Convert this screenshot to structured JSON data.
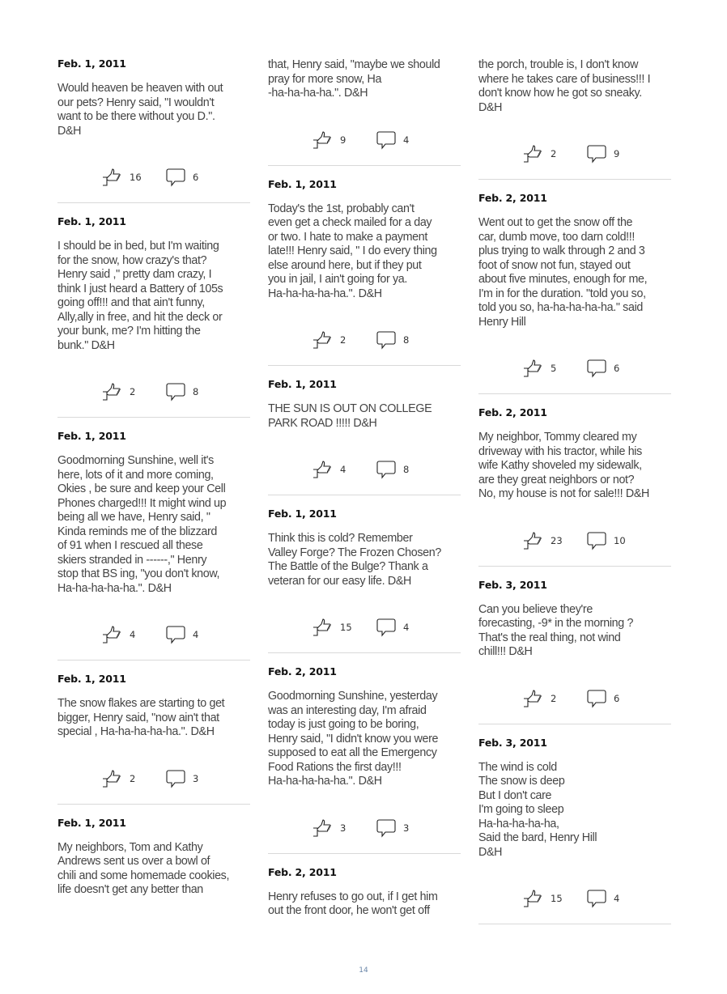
{
  "columns": [
    {
      "posts": [
        {
          "date": "Feb. 1, 2011",
          "text": "Would heaven be heaven with out\nour pets? Henry said, \"I wouldn't\nwant to be there without you D.\".\nD&H",
          "likes": "16",
          "comments": "6"
        },
        {
          "date": "Feb. 1, 2011",
          "text": "I should be in bed, but I'm waiting\nfor the snow, how crazy's that?\nHenry said ,\" pretty dam crazy, I\nthink I just heard a Battery of 105s\ngoing off!!! and that ain't funny,\nAlly,ally in free, and hit the deck or\nyour bunk, me? I'm hitting the\nbunk.\" D&H",
          "likes": "2",
          "comments": "8"
        },
        {
          "date": "Feb. 1, 2011",
          "text": "Goodmorning Sunshine, well it's\nhere, lots of it and more coming,\nOkies , be sure and keep your Cell\nPhones charged!!! It might wind up\nbeing all we have, Henry said, \"\nKinda reminds me of the blizzard\nof 91 when I rescued all these\nskiers stranded in ------,\" Henry\nstop that BS ing, \"you don't know,\nHa-ha-ha-ha-ha.\". D&H",
          "likes": "4",
          "comments": "4"
        },
        {
          "date": "Feb. 1, 2011",
          "text": "The snow flakes are starting to get\nbigger, Henry said, \"now ain't that\nspecial , Ha-ha-ha-ha-ha.\". D&H",
          "likes": "2",
          "comments": "3"
        },
        {
          "date": "Feb. 1, 2011",
          "text": "My neighbors, Tom and Kathy\nAndrews sent us over a bowl of\nchili and some homemade cookies,\nlife doesn't get any better than"
        }
      ]
    },
    {
      "posts": [
        {
          "text": "that, Henry said, \"maybe we should\npray for more snow, Ha\n-ha-ha-ha-ha.\". D&H",
          "likes": "9",
          "comments": "4"
        },
        {
          "date": "Feb. 1, 2011",
          "text": "Today's the 1st, probably can't\neven get a check mailed for a day\nor two. I hate to make a payment\nlate!!! Henry said, \" I do every thing\nelse around here, but if they put\nyou in jail, I ain't going for ya.\nHa-ha-ha-ha-ha.\". D&H",
          "likes": "2",
          "comments": "8"
        },
        {
          "date": "Feb. 1, 2011",
          "text": "THE SUN IS OUT ON COLLEGE\nPARK ROAD !!!!! D&H",
          "likes": "4",
          "comments": "8"
        },
        {
          "date": "Feb. 1, 2011",
          "text": "Think this is cold? Remember\nValley Forge? The Frozen Chosen?\nThe Battle of the Bulge? Thank a\nveteran for our easy life. D&H",
          "likes": "15",
          "comments": "4"
        },
        {
          "date": "Feb. 2, 2011",
          "text": "Goodmorning Sunshine, yesterday\nwas an interesting day, I'm afraid\ntoday is just going to be boring,\nHenry said, \"I didn't know you were\nsupposed to eat all the Emergency\nFood Rations the first day!!!\nHa-ha-ha-ha-ha.\". D&H",
          "likes": "3",
          "comments": "3"
        },
        {
          "date": "Feb. 2, 2011",
          "text": "Henry refuses to go out, if I get him\nout the front door, he won't get off"
        }
      ]
    },
    {
      "posts": [
        {
          "text": "the porch, trouble is, I don't know\nwhere he takes care of business!!! I\ndon't know how he got so sneaky.\nD&H",
          "likes": "2",
          "comments": "9"
        },
        {
          "date": "Feb. 2, 2011",
          "text": "Went out to get the snow off the\ncar, dumb move, too darn cold!!!\nplus trying to walk through 2 and 3\nfoot of snow not fun, stayed out\nabout five minutes, enough for me,\nI'm in for the duration. \"told you so,\ntold you so, ha-ha-ha-ha-ha.\" said\nHenry Hill",
          "likes": "5",
          "comments": "6"
        },
        {
          "date": "Feb. 2, 2011",
          "text": "My neighbor, Tommy cleared my\ndriveway with his tractor, while his\nwife Kathy shoveled my sidewalk,\nare they great neighbors or not?\nNo, my house is not for sale!!! D&H",
          "likes": "23",
          "comments": "10"
        },
        {
          "date": "Feb. 3, 2011",
          "text": "Can you believe they're\nforecasting, -9* in the morning ?\nThat's the real thing, not wind\nchill!!! D&H",
          "likes": "2",
          "comments": "6"
        },
        {
          "date": "Feb. 3, 2011",
          "text": "The wind is cold\nThe snow is deep\nBut I don't care\nI'm going to sleep\nHa-ha-ha-ha-ha,\nSaid the bard, Henry Hill\nD&H",
          "likes": "15",
          "comments": "4"
        }
      ]
    }
  ],
  "icons": {
    "like": "thumbs-up-icon",
    "comment": "comment-bubble-icon"
  },
  "page_number": "14"
}
